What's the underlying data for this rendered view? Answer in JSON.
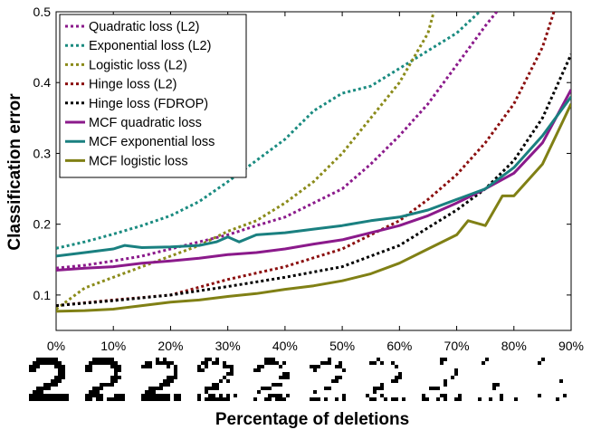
{
  "chart_data": {
    "type": "line",
    "xlabel": "Percentage of deletions",
    "ylabel": "Classification error",
    "xlim": [
      0,
      90
    ],
    "ylim": [
      0.05,
      0.5
    ],
    "x_ticks": [
      "0%",
      "10%",
      "20%",
      "30%",
      "40%",
      "50%",
      "60%",
      "70%",
      "80%",
      "90%"
    ],
    "x_tick_values": [
      0,
      10,
      20,
      30,
      40,
      50,
      60,
      70,
      80,
      90
    ],
    "y_ticks": [
      "0.1",
      "0.2",
      "0.3",
      "0.4",
      "0.5"
    ],
    "y_tick_values": [
      0.1,
      0.2,
      0.3,
      0.4,
      0.5
    ],
    "grid": false,
    "legend_position": "top-left",
    "series": [
      {
        "name": "Quadratic loss (L2)",
        "color": "#8b1a8b",
        "dash": "dotted",
        "x": [
          0,
          5,
          10,
          15,
          20,
          25,
          30,
          35,
          40,
          45,
          50,
          55,
          60,
          65,
          70,
          75,
          77
        ],
        "y": [
          0.138,
          0.142,
          0.148,
          0.155,
          0.165,
          0.175,
          0.185,
          0.198,
          0.21,
          0.23,
          0.25,
          0.285,
          0.325,
          0.37,
          0.425,
          0.48,
          0.5
        ]
      },
      {
        "name": "Exponential loss (L2)",
        "color": "#1a8b80",
        "dash": "dotted",
        "x": [
          0,
          5,
          10,
          15,
          20,
          25,
          30,
          35,
          40,
          45,
          50,
          55,
          60,
          65,
          70,
          74
        ],
        "y": [
          0.166,
          0.175,
          0.186,
          0.198,
          0.212,
          0.232,
          0.26,
          0.29,
          0.32,
          0.36,
          0.385,
          0.395,
          0.42,
          0.445,
          0.47,
          0.5
        ]
      },
      {
        "name": "Logistic loss (L2)",
        "color": "#8b8b1a",
        "dash": "dotted",
        "x": [
          0,
          5,
          10,
          15,
          20,
          25,
          30,
          35,
          40,
          45,
          50,
          55,
          60,
          65,
          66
        ],
        "y": [
          0.08,
          0.11,
          0.125,
          0.14,
          0.155,
          0.17,
          0.19,
          0.205,
          0.23,
          0.26,
          0.3,
          0.35,
          0.4,
          0.47,
          0.5
        ]
      },
      {
        "name": "Hinge loss (L2)",
        "color": "#8b0f0f",
        "dash": "dotted",
        "x": [
          0,
          10,
          20,
          30,
          40,
          50,
          60,
          65,
          70,
          75,
          80,
          85,
          87
        ],
        "y": [
          0.085,
          0.093,
          0.1,
          0.122,
          0.14,
          0.165,
          0.205,
          0.235,
          0.27,
          0.315,
          0.37,
          0.45,
          0.5
        ]
      },
      {
        "name": "Hinge loss (FDROP)",
        "color": "#000000",
        "dash": "dotted",
        "x": [
          0,
          10,
          20,
          30,
          40,
          50,
          60,
          65,
          70,
          75,
          80,
          85,
          90
        ],
        "y": [
          0.085,
          0.092,
          0.1,
          0.112,
          0.125,
          0.14,
          0.17,
          0.195,
          0.22,
          0.25,
          0.29,
          0.35,
          0.44
        ]
      },
      {
        "name": "MCF quadratic loss",
        "color": "#8b1a8b",
        "dash": "solid",
        "x": [
          0,
          5,
          10,
          15,
          20,
          25,
          30,
          35,
          40,
          45,
          50,
          55,
          60,
          65,
          70,
          75,
          80,
          85,
          90
        ],
        "y": [
          0.135,
          0.138,
          0.14,
          0.145,
          0.148,
          0.152,
          0.157,
          0.16,
          0.165,
          0.172,
          0.178,
          0.188,
          0.198,
          0.212,
          0.23,
          0.25,
          0.272,
          0.315,
          0.39
        ]
      },
      {
        "name": "MCF exponential loss",
        "color": "#1a8080",
        "dash": "solid",
        "x": [
          0,
          5,
          10,
          12,
          15,
          20,
          25,
          28,
          30,
          32,
          35,
          40,
          45,
          50,
          55,
          60,
          65,
          70,
          75,
          80,
          85,
          90
        ],
        "y": [
          0.155,
          0.16,
          0.165,
          0.17,
          0.167,
          0.168,
          0.17,
          0.175,
          0.182,
          0.175,
          0.185,
          0.188,
          0.193,
          0.198,
          0.205,
          0.21,
          0.22,
          0.235,
          0.25,
          0.28,
          0.325,
          0.38
        ]
      },
      {
        "name": "MCF logistic loss",
        "color": "#808015",
        "dash": "solid",
        "x": [
          0,
          5,
          10,
          15,
          20,
          25,
          30,
          35,
          40,
          45,
          50,
          55,
          60,
          65,
          70,
          72,
          75,
          78,
          80,
          85,
          90
        ],
        "y": [
          0.077,
          0.078,
          0.08,
          0.085,
          0.09,
          0.093,
          0.098,
          0.102,
          0.108,
          0.113,
          0.12,
          0.13,
          0.145,
          0.165,
          0.185,
          0.205,
          0.198,
          0.24,
          0.24,
          0.285,
          0.37
        ]
      }
    ]
  },
  "digit_strip": {
    "label": "2",
    "deletion_levels": [
      0,
      10,
      20,
      30,
      40,
      50,
      60,
      70,
      80,
      90
    ]
  }
}
